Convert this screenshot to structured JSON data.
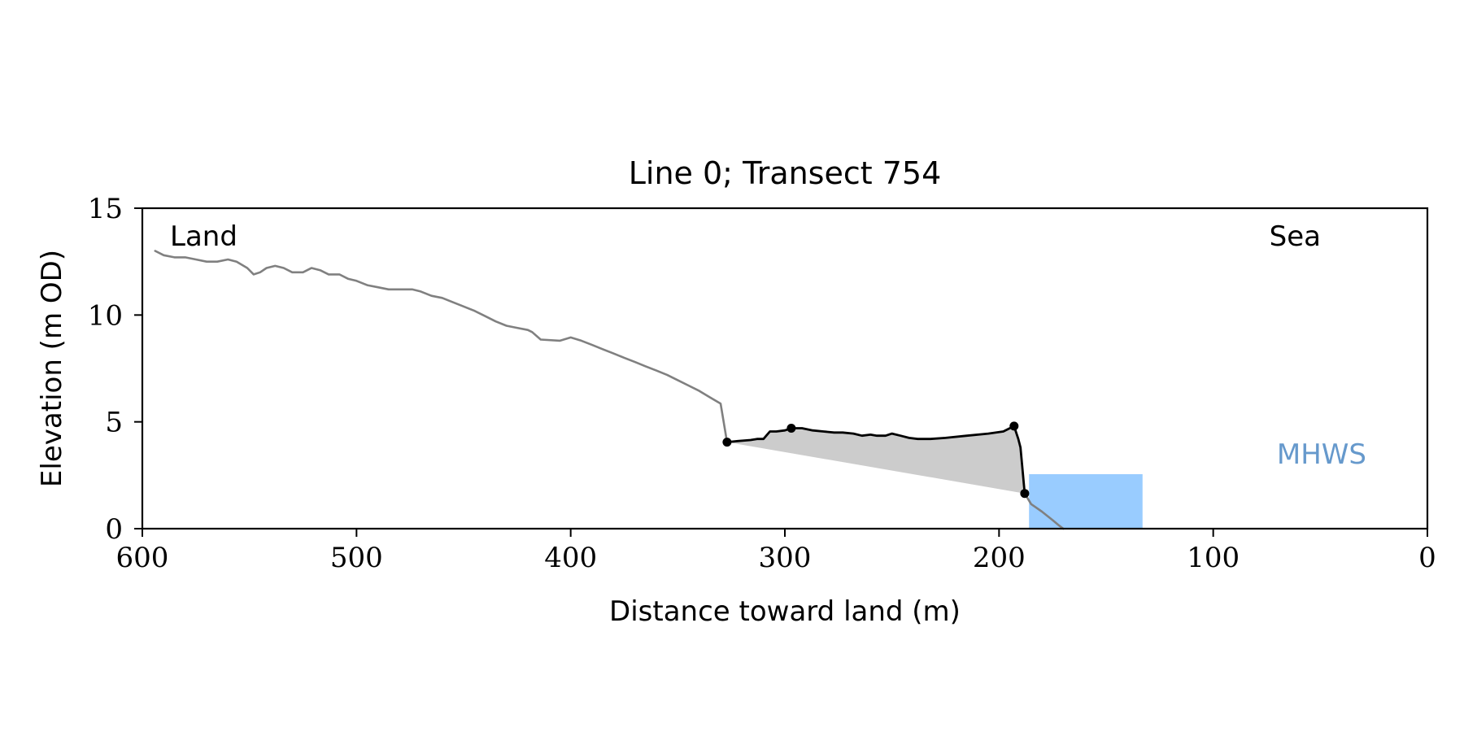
{
  "chart_data": {
    "type": "line",
    "title": "Line 0; Transect 754",
    "xlabel": "Distance toward land (m)",
    "ylabel": "Elevation (m OD)",
    "xlim": [
      600,
      0
    ],
    "ylim": [
      0,
      15
    ],
    "x_ticks": [
      600,
      500,
      400,
      300,
      200,
      100,
      0
    ],
    "y_ticks": [
      0,
      5,
      10,
      15
    ],
    "grid": false,
    "annotations": {
      "land": "Land",
      "sea": "Sea",
      "mhws": "MHWS"
    },
    "colors": {
      "profile": "#808080",
      "dune": "#000000",
      "dune_fill": "#cccccc",
      "mhws_box": "#99ccff",
      "mhws_text": "#6699cc"
    },
    "mhws": {
      "x_range": [
        186,
        133
      ],
      "y_range": [
        0,
        2.55
      ]
    },
    "series": [
      {
        "points": [
          [
            594,
            13.0
          ],
          [
            590,
            12.8
          ],
          [
            585,
            12.7
          ],
          [
            580,
            12.7
          ],
          [
            575,
            12.6
          ],
          [
            570,
            12.5
          ],
          [
            565,
            12.5
          ],
          [
            560,
            12.6
          ],
          [
            556,
            12.5
          ],
          [
            551,
            12.2
          ],
          [
            548,
            11.9
          ],
          [
            545,
            12.0
          ],
          [
            542,
            12.2
          ],
          [
            538,
            12.3
          ],
          [
            534,
            12.2
          ],
          [
            530,
            12.0
          ],
          [
            525,
            12.0
          ],
          [
            521,
            12.2
          ],
          [
            517,
            12.1
          ],
          [
            513,
            11.9
          ],
          [
            508,
            11.9
          ],
          [
            504,
            11.7
          ],
          [
            500,
            11.6
          ],
          [
            495,
            11.4
          ],
          [
            490,
            11.3
          ],
          [
            485,
            11.2
          ],
          [
            480,
            11.2
          ],
          [
            474,
            11.2
          ],
          [
            470,
            11.1
          ],
          [
            465,
            10.9
          ],
          [
            460,
            10.8
          ],
          [
            455,
            10.6
          ],
          [
            450,
            10.4
          ],
          [
            445,
            10.2
          ],
          [
            440,
            9.95
          ],
          [
            435,
            9.7
          ],
          [
            430,
            9.5
          ],
          [
            425,
            9.4
          ],
          [
            420,
            9.3
          ],
          [
            418,
            9.2
          ],
          [
            414,
            8.85
          ],
          [
            405,
            8.8
          ],
          [
            400,
            8.95
          ],
          [
            395,
            8.8
          ],
          [
            390,
            8.6
          ],
          [
            385,
            8.4
          ],
          [
            380,
            8.2
          ],
          [
            375,
            8.0
          ],
          [
            370,
            7.8
          ],
          [
            365,
            7.6
          ],
          [
            360,
            7.4
          ],
          [
            355,
            7.2
          ],
          [
            350,
            6.95
          ],
          [
            345,
            6.7
          ],
          [
            340,
            6.45
          ],
          [
            335,
            6.15
          ],
          [
            330,
            5.85
          ],
          [
            325,
            5.5
          ],
          [
            320,
            5.2
          ],
          [
            314,
            4.9
          ],
          [
            308,
            4.7
          ],
          [
            302,
            4.5
          ],
          [
            296,
            4.35
          ],
          [
            290,
            4.3
          ],
          [
            285,
            4.45
          ],
          [
            280,
            4.55
          ],
          [
            275,
            4.6
          ],
          [
            268,
            4.6
          ],
          [
            262,
            4.55
          ],
          [
            256,
            4.45
          ],
          [
            250,
            4.35
          ],
          [
            245,
            4.25
          ],
          [
            240,
            4.25
          ],
          [
            235,
            4.2
          ],
          [
            230,
            4.15
          ],
          [
            226,
            4.1
          ],
          [
            222,
            4.05
          ],
          [
            218,
            4.0
          ],
          [
            212,
            3.95
          ],
          [
            206,
            3.9
          ],
          [
            200,
            3.85
          ],
          [
            195,
            3.8
          ],
          [
            190,
            3.8
          ],
          [
            185,
            3.75
          ],
          [
            180,
            3.7
          ]
        ],
        "role": "profile_seaward_extension",
        "points_sea": [
          [
            188,
            1.65
          ],
          [
            185,
            1.15
          ],
          [
            180,
            0.8
          ],
          [
            175,
            0.4
          ],
          [
            172,
            0.15
          ],
          [
            170,
            0.0
          ]
        ]
      },
      {
        "role": "dune",
        "points": [
          [
            327,
            4.05
          ],
          [
            322,
            4.1
          ],
          [
            316,
            4.15
          ],
          [
            313,
            4.2
          ],
          [
            310,
            4.2
          ],
          [
            307,
            4.55
          ],
          [
            304,
            4.55
          ],
          [
            300,
            4.6
          ],
          [
            297,
            4.7
          ],
          [
            292,
            4.7
          ],
          [
            287,
            4.6
          ],
          [
            282,
            4.55
          ],
          [
            277,
            4.5
          ],
          [
            273,
            4.5
          ],
          [
            268,
            4.45
          ],
          [
            264,
            4.35
          ],
          [
            260,
            4.4
          ],
          [
            257,
            4.35
          ],
          [
            253,
            4.35
          ],
          [
            250,
            4.45
          ],
          [
            246,
            4.35
          ],
          [
            242,
            4.25
          ],
          [
            238,
            4.2
          ],
          [
            232,
            4.2
          ],
          [
            225,
            4.25
          ],
          [
            215,
            4.35
          ],
          [
            205,
            4.45
          ],
          [
            198,
            4.55
          ],
          [
            193,
            4.8
          ],
          [
            191,
            4.2
          ],
          [
            190,
            3.8
          ],
          [
            188,
            1.65
          ]
        ],
        "markers": [
          [
            327,
            4.05
          ],
          [
            297,
            4.7
          ],
          [
            193,
            4.8
          ],
          [
            188,
            1.65
          ]
        ]
      }
    ]
  }
}
